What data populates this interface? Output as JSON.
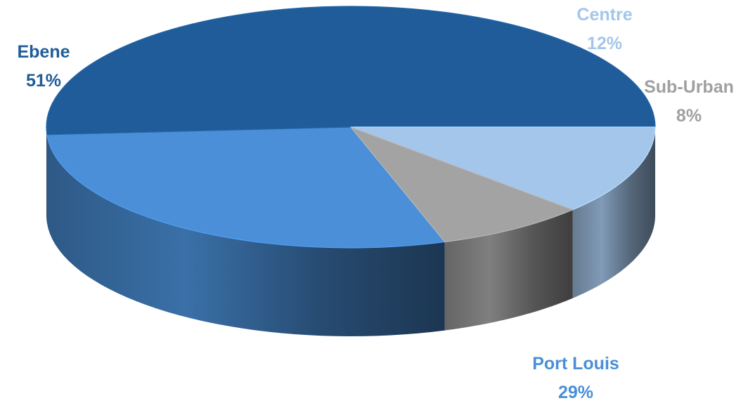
{
  "chart_data": {
    "type": "pie",
    "style": "3d",
    "title": "",
    "slices": [
      {
        "label": "Ebene",
        "percent_label": "51%",
        "value": 51,
        "color": "#1f5c99",
        "label_color": "#1f5c99"
      },
      {
        "label": "Centre",
        "percent_label": "12%",
        "value": 12,
        "color": "#a4c6ea",
        "label_color": "#a4c6ea"
      },
      {
        "label": "Sub-Urban",
        "percent_label": "8%",
        "value": 8,
        "color": "#a3a3a3",
        "label_color": "#a0a0a0"
      },
      {
        "label": "Port Louis",
        "percent_label": "29%",
        "value": 29,
        "color": "#4a8fd8",
        "label_color": "#4a8fd8"
      }
    ],
    "legend": "none"
  }
}
